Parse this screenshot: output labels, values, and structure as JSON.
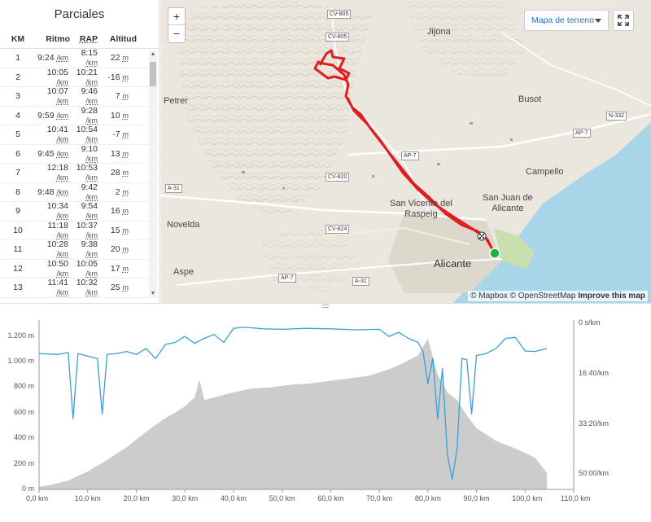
{
  "splits": {
    "title": "Parciales",
    "headers": {
      "km": "KM",
      "pace": "Ritmo",
      "gap": "RAP",
      "elev": "Altitud"
    },
    "pace_unit": "/km",
    "elev_unit": "m",
    "rows": [
      {
        "km": "1",
        "pace": "9:24",
        "gap": "8:15",
        "elev": "22"
      },
      {
        "km": "2",
        "pace": "10:05",
        "gap": "10:21",
        "elev": "-16"
      },
      {
        "km": "3",
        "pace": "10:07",
        "gap": "9:46",
        "elev": "7"
      },
      {
        "km": "4",
        "pace": "9:59",
        "gap": "9:28",
        "elev": "10"
      },
      {
        "km": "5",
        "pace": "10:41",
        "gap": "10:54",
        "elev": "-7"
      },
      {
        "km": "6",
        "pace": "9:45",
        "gap": "9:10",
        "elev": "13"
      },
      {
        "km": "7",
        "pace": "12:18",
        "gap": "10:53",
        "elev": "28"
      },
      {
        "km": "8",
        "pace": "9:48",
        "gap": "9:42",
        "elev": "2"
      },
      {
        "km": "9",
        "pace": "10:34",
        "gap": "9:54",
        "elev": "16"
      },
      {
        "km": "10",
        "pace": "11:18",
        "gap": "10:37",
        "elev": "15"
      },
      {
        "km": "11",
        "pace": "10:28",
        "gap": "9:38",
        "elev": "20"
      },
      {
        "km": "12",
        "pace": "10:50",
        "gap": "10:05",
        "elev": "17"
      },
      {
        "km": "13",
        "pace": "11:41",
        "gap": "10:32",
        "elev": "25"
      }
    ]
  },
  "map": {
    "zoom_in": "+",
    "zoom_out": "−",
    "map_type": "Mapa de terreno",
    "attribution": {
      "mapbox": "© Mapbox",
      "osm": "© OpenStreetMap",
      "improve": "Improve this map"
    },
    "places": {
      "jijona": "Jijona",
      "petrer": "Petrer",
      "busot": "Busot",
      "campello": "Campello",
      "san_vicente": "San Vicente del\nRaspeig",
      "san_juan": "San Juan de\nAlicante",
      "novelda": "Novelda",
      "aspe": "Aspe",
      "alicante": "Alicante"
    },
    "roads": {
      "cv805a": "CV-805",
      "cv805b": "CV-805",
      "n332": "N-332",
      "ap7a": "AP-7",
      "ap7b": "AP-7",
      "cv820": "CV-820",
      "a31a": "A-31",
      "cv824": "CV-824",
      "ap7c": "AP-7",
      "a31b": "A-31"
    },
    "colors": {
      "route": "#e01e1e",
      "water": "#a8d5e8",
      "park": "#c9dfae",
      "start": "#1db339"
    }
  },
  "profile": {
    "colors": {
      "pace_line": "#3a9fd4",
      "elevation_fill": "#cccccc"
    },
    "chart_data": {
      "type": "area",
      "x_unit": "km",
      "x_ticks": [
        "0,0 km",
        "10,0 km",
        "20,0 km",
        "30,0 km",
        "40,0 km",
        "50,0 km",
        "60,0 km",
        "70,0 km",
        "80,0 km",
        "90,0 km",
        "100,0 km",
        "110,0 km"
      ],
      "xlim": [
        0,
        110
      ],
      "elev_ticks": [
        "0 m",
        "200 m",
        "400 m",
        "600 m",
        "800 m",
        "1.000 m",
        "1.200 m"
      ],
      "elev_ylim": [
        0,
        1300
      ],
      "pace_ticks": [
        "0 s/km",
        "16:40/km",
        "33:20/km",
        "50:00/km"
      ],
      "pace_ylim_seconds": [
        0,
        3300
      ],
      "elevation": {
        "x": [
          0,
          3,
          6,
          10,
          14,
          18,
          22,
          26,
          28,
          30,
          32,
          33,
          34,
          36,
          40,
          44,
          48,
          52,
          56,
          60,
          64,
          68,
          72,
          75,
          78,
          80,
          82,
          84,
          86,
          88,
          90,
          94,
          98,
          102,
          104.5
        ],
        "y": [
          20,
          40,
          70,
          140,
          230,
          330,
          450,
          560,
          600,
          650,
          720,
          860,
          700,
          720,
          760,
          790,
          800,
          820,
          830,
          850,
          870,
          890,
          940,
          990,
          1050,
          1180,
          900,
          760,
          700,
          580,
          480,
          380,
          320,
          250,
          130
        ]
      },
      "pace": {
        "x": [
          0,
          4,
          6,
          7,
          8,
          10,
          12,
          13,
          14,
          16,
          18,
          20,
          22,
          24,
          26,
          28,
          30,
          32,
          34,
          36,
          38,
          40,
          42,
          44,
          46,
          50,
          55,
          60,
          65,
          70,
          72,
          74,
          76,
          78,
          79,
          80,
          81,
          82,
          83,
          84,
          85,
          86,
          87,
          88,
          89,
          90,
          92,
          94,
          96,
          98,
          100,
          102,
          104.5
        ],
        "y": [
          600,
          620,
          580,
          1900,
          600,
          650,
          700,
          1800,
          620,
          600,
          560,
          620,
          500,
          700,
          420,
          380,
          260,
          400,
          300,
          220,
          380,
          100,
          80,
          90,
          110,
          120,
          100,
          110,
          130,
          120,
          260,
          180,
          300,
          380,
          560,
          1200,
          700,
          1900,
          900,
          2600,
          3100,
          2500,
          700,
          720,
          1800,
          640,
          600,
          500,
          300,
          280,
          550,
          560,
          500
        ]
      }
    }
  }
}
